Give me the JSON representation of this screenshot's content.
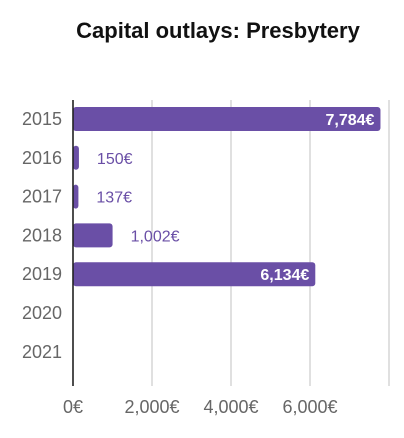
{
  "chart_data": {
    "type": "bar",
    "orientation": "horizontal",
    "title": "Capital outlays: Presbytery",
    "categories": [
      "2015",
      "2016",
      "2017",
      "2018",
      "2019",
      "2020",
      "2021"
    ],
    "values": [
      7784,
      150,
      137,
      1002,
      6134,
      null,
      null
    ],
    "value_labels": [
      "7,784€",
      "150€",
      "137€",
      "1,002€",
      "6,134€",
      "",
      ""
    ],
    "x_ticks": [
      {
        "value": 0,
        "label": "0€"
      },
      {
        "value": 2000,
        "label": "2,000€"
      },
      {
        "value": 4000,
        "label": "4,000€"
      },
      {
        "value": 6000,
        "label": "6,000€"
      }
    ],
    "xlim": [
      0,
      8000
    ],
    "grid": true,
    "bar_color": "#6a4fa6",
    "label_color_outside": "#6a4fa6",
    "label_color_inside": "#ffffff",
    "xlabel": "",
    "ylabel": ""
  }
}
